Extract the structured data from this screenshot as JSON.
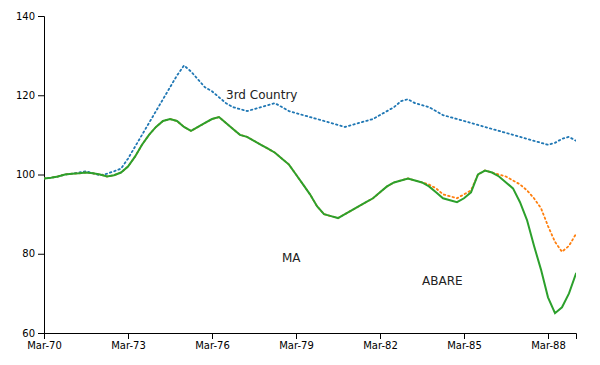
{
  "chart_data": {
    "type": "line",
    "categories": [
      "Mar-70",
      null,
      null,
      null,
      null,
      null,
      null,
      null,
      null,
      null,
      null,
      null,
      "Mar-73",
      null,
      null,
      null,
      null,
      null,
      null,
      null,
      null,
      null,
      null,
      null,
      "Mar-76",
      null,
      null,
      null,
      null,
      null,
      null,
      null,
      null,
      null,
      null,
      null,
      "Mar-79",
      null,
      null,
      null,
      null,
      null,
      null,
      null,
      null,
      null,
      null,
      null,
      "Mar-82",
      null,
      null,
      null,
      null,
      null,
      null,
      null,
      null,
      null,
      null,
      null,
      "Mar-85",
      null,
      null,
      null,
      null,
      null,
      null,
      null,
      null,
      null,
      null,
      null,
      "Mar-88",
      null,
      null,
      null,
      null
    ],
    "series": [
      {
        "line_style": "dotted",
        "values": [
          99.0,
          99.2,
          99.5,
          100.0,
          100.2,
          100.5,
          100.8,
          100.3,
          99.8,
          100.2,
          100.8,
          101.5,
          104.0,
          107.0,
          110.0,
          113.0,
          116.0,
          119.0,
          122.0,
          125.0,
          127.5,
          126.0,
          124.0,
          122.0,
          121.0,
          119.5,
          118.0,
          117.0,
          116.5,
          116.0,
          116.5,
          117.0,
          117.5,
          118.0,
          117.0,
          116.0,
          115.5,
          115.0,
          114.5,
          114.0,
          113.5,
          113.0,
          112.5,
          112.0,
          112.5,
          113.0,
          113.5,
          114.0,
          115.0,
          116.0,
          117.0,
          118.5,
          119.0,
          118.0,
          117.5,
          117.0,
          116.0,
          115.0,
          114.5,
          114.0,
          113.5,
          113.0,
          112.5,
          112.0,
          111.5,
          111.0,
          110.5,
          110.0,
          109.5,
          109.0,
          108.5,
          108.0,
          107.5,
          108.0,
          109.0,
          109.5,
          108.5
        ]
      },
      {
        "line_style": "dotted",
        "values": [
          99.0,
          99.2,
          99.5,
          100.0,
          100.2,
          100.3,
          100.5,
          100.3,
          100.0,
          99.5,
          99.8,
          100.5,
          102.0,
          104.5,
          107.5,
          110.0,
          112.0,
          113.5,
          114.0,
          113.5,
          112.0,
          111.0,
          112.0,
          113.0,
          114.0,
          114.5,
          113.0,
          111.5,
          110.0,
          109.5,
          108.5,
          107.5,
          106.5,
          105.5,
          104.0,
          102.5,
          100.0,
          97.5,
          95.0,
          92.0,
          90.0,
          89.5,
          89.0,
          90.0,
          91.0,
          92.0,
          93.0,
          94.0,
          95.5,
          97.0,
          98.0,
          98.5,
          99.0,
          98.5,
          98.0,
          97.5,
          96.5,
          95.0,
          94.5,
          94.0,
          95.0,
          96.0,
          100.0,
          101.0,
          100.5,
          100.0,
          99.5,
          98.5,
          97.5,
          96.0,
          94.0,
          91.5,
          87.0,
          83.0,
          80.5,
          82.0,
          85.0
        ]
      },
      {
        "line_style": "solid",
        "values": [
          99.0,
          99.2,
          99.5,
          100.0,
          100.2,
          100.3,
          100.5,
          100.3,
          100.0,
          99.5,
          99.8,
          100.5,
          102.0,
          104.5,
          107.5,
          110.0,
          112.0,
          113.5,
          114.0,
          113.5,
          112.0,
          111.0,
          112.0,
          113.0,
          114.0,
          114.5,
          113.0,
          111.5,
          110.0,
          109.5,
          108.5,
          107.5,
          106.5,
          105.5,
          104.0,
          102.5,
          100.0,
          97.5,
          95.0,
          92.0,
          90.0,
          89.5,
          89.0,
          90.0,
          91.0,
          92.0,
          93.0,
          94.0,
          95.5,
          97.0,
          98.0,
          98.5,
          99.0,
          98.5,
          98.0,
          97.0,
          95.5,
          94.0,
          93.5,
          93.0,
          94.0,
          95.5,
          100.0,
          101.0,
          100.5,
          99.5,
          98.0,
          96.5,
          93.0,
          88.5,
          82.0,
          76.0,
          69.0,
          65.0,
          66.5,
          70.0,
          75.0
        ]
      }
    ],
    "ylim": [
      60,
      140
    ],
    "yticks": [
      60,
      80,
      100,
      120,
      140
    ],
    "grid": false,
    "annotations": [
      {
        "text": "3rd Country",
        "x": 26,
        "y": 119
      },
      {
        "text": "MA",
        "x": 34,
        "y": 78
      },
      {
        "text": "ABARE",
        "x": 54,
        "y": 72
      }
    ]
  }
}
